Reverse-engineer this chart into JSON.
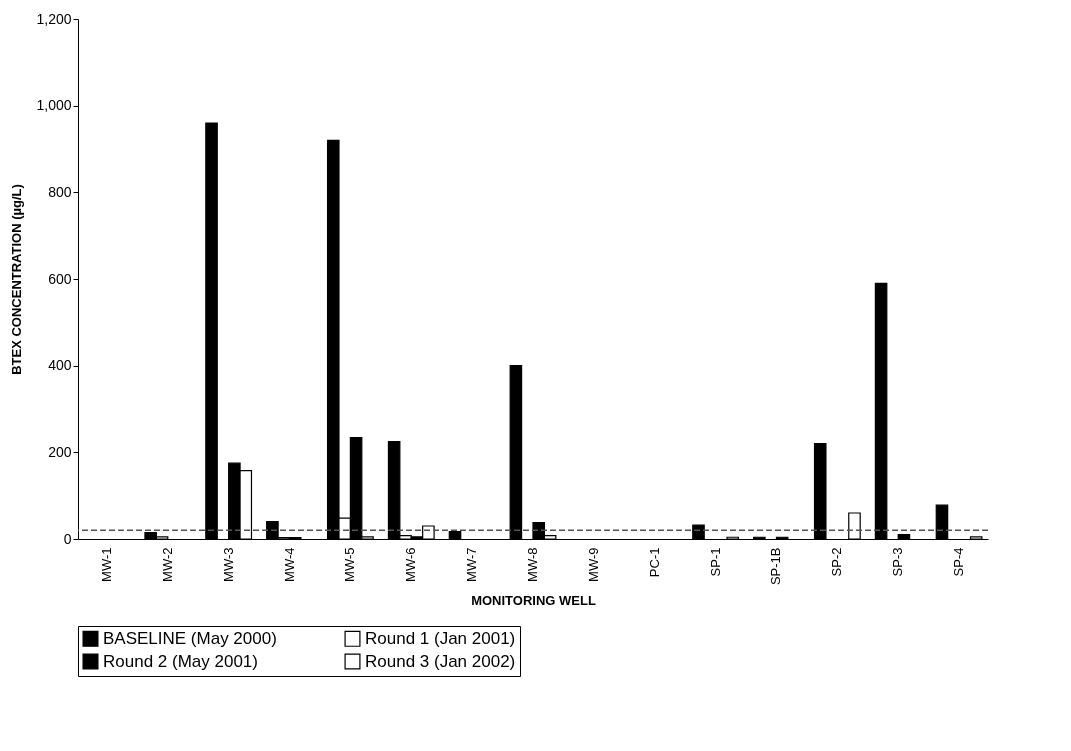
{
  "chart_data": {
    "type": "bar",
    "xlabel": "MONITORING WELL",
    "ylabel": "BTEX CONCENTRATION (µg/L)",
    "categories": [
      "MW-1",
      "MW-2",
      "MW-3",
      "MW-4",
      "MW-5",
      "MW-6",
      "MW-7",
      "MW-8",
      "MW-9",
      "PC-1",
      "SP-1",
      "SP-1B",
      "SP-2",
      "SP-3",
      "SP-4"
    ],
    "series": [
      {
        "name": "BASELINE  (May 2000)",
        "color": "#000000",
        "values": [
          null,
          15,
          960,
          40,
          920,
          225,
          17,
          400,
          null,
          null,
          32,
          4,
          220,
          590,
          78
        ]
      },
      {
        "name": "Round 1 (Jan 2001)",
        "color": "#ffffff",
        "values": [
          null,
          5,
          null,
          3,
          48,
          8,
          null,
          null,
          null,
          null,
          null,
          null,
          null,
          null,
          null
        ]
      },
      {
        "name": "Round 2 (May 2001)",
        "color": "#000000",
        "values": [
          null,
          null,
          175,
          3,
          234,
          5,
          null,
          38,
          null,
          null,
          null,
          4,
          null,
          10,
          null
        ]
      },
      {
        "name": "Round 3 (Jan 2002)",
        "color": "#ffffff",
        "values": [
          null,
          null,
          158,
          null,
          5,
          30,
          null,
          8,
          null,
          null,
          4,
          null,
          60,
          null,
          5
        ]
      }
    ],
    "ylim": [
      0,
      1200
    ],
    "yticks": [
      {
        "value": 0,
        "label": "0"
      },
      {
        "value": 200,
        "label": "200"
      },
      {
        "value": 400,
        "label": "400"
      },
      {
        "value": 600,
        "label": "600"
      },
      {
        "value": 800,
        "label": "800"
      },
      {
        "value": 1000,
        "label": "1,000"
      },
      {
        "value": 1200,
        "label": "1,200"
      }
    ],
    "ref_lines": [
      {
        "axis": "y",
        "value": 20,
        "color": "#555555",
        "line_style": "dashed"
      }
    ],
    "legend": "bottom",
    "grid": false
  }
}
